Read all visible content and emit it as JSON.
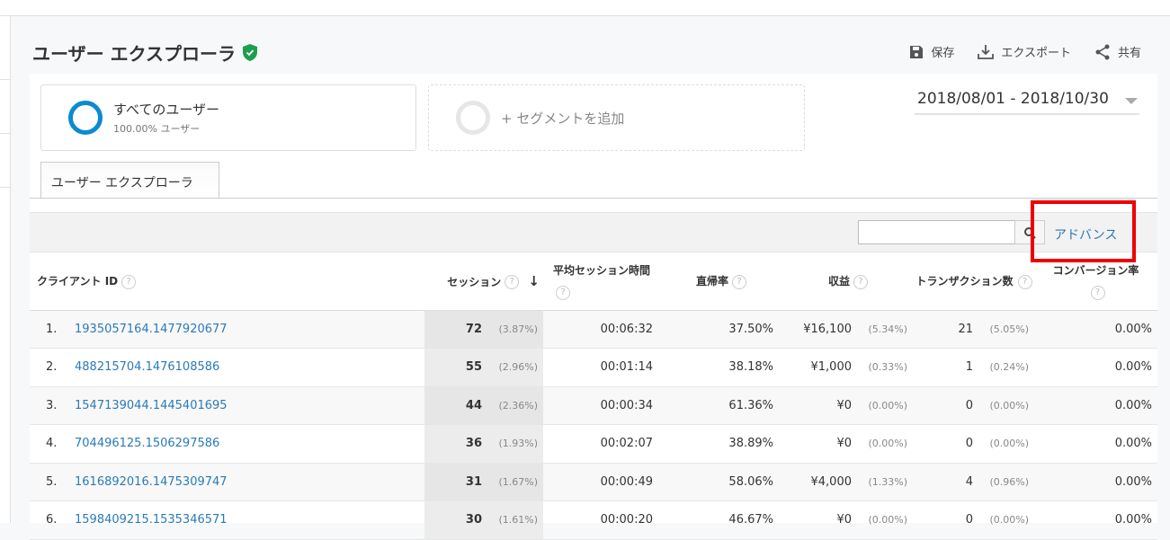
{
  "header": {
    "title": "ユーザー エクスプローラ",
    "verified_color": "#1e9e4f",
    "actions": {
      "save": "保存",
      "export": "エクスポート",
      "share": "共有"
    }
  },
  "segments": [
    {
      "name": "すべてのユーザー",
      "sub": "100.00% ユーザー",
      "color": "#0b8bd0"
    },
    {
      "name": "+ セグメントを追加"
    }
  ],
  "date_range": "2018/08/01 - 2018/10/30",
  "tab": "ユーザー エクスプローラ",
  "toolbar": {
    "search_value": "",
    "advanced": "アドバンス"
  },
  "table": {
    "headers": {
      "client_id": "クライアント ID",
      "sessions": "セッション",
      "avg_duration": "平均セッション時間",
      "bounce": "直帰率",
      "revenue": "収益",
      "transactions": "トランザクション数",
      "conversion": "コンバージョン率",
      "help": "?"
    },
    "rows": [
      {
        "idx": "1.",
        "id": "1935057164.1477920677",
        "sessions": "72",
        "sessions_pct": "(3.87%)",
        "duration": "00:06:32",
        "bounce": "37.50%",
        "revenue": "¥16,100",
        "revenue_pct": "(5.34%)",
        "tx": "21",
        "tx_pct": "(5.05%)",
        "conv": "0.00%"
      },
      {
        "idx": "2.",
        "id": "488215704.1476108586",
        "sessions": "55",
        "sessions_pct": "(2.96%)",
        "duration": "00:01:14",
        "bounce": "38.18%",
        "revenue": "¥1,000",
        "revenue_pct": "(0.33%)",
        "tx": "1",
        "tx_pct": "(0.24%)",
        "conv": "0.00%"
      },
      {
        "idx": "3.",
        "id": "1547139044.1445401695",
        "sessions": "44",
        "sessions_pct": "(2.36%)",
        "duration": "00:00:34",
        "bounce": "61.36%",
        "revenue": "¥0",
        "revenue_pct": "(0.00%)",
        "tx": "0",
        "tx_pct": "(0.00%)",
        "conv": "0.00%"
      },
      {
        "idx": "4.",
        "id": "704496125.1506297586",
        "sessions": "36",
        "sessions_pct": "(1.93%)",
        "duration": "00:02:07",
        "bounce": "38.89%",
        "revenue": "¥0",
        "revenue_pct": "(0.00%)",
        "tx": "0",
        "tx_pct": "(0.00%)",
        "conv": "0.00%"
      },
      {
        "idx": "5.",
        "id": "1616892016.1475309747",
        "sessions": "31",
        "sessions_pct": "(1.67%)",
        "duration": "00:00:49",
        "bounce": "58.06%",
        "revenue": "¥4,000",
        "revenue_pct": "(1.33%)",
        "tx": "4",
        "tx_pct": "(0.96%)",
        "conv": "0.00%"
      },
      {
        "idx": "6.",
        "id": "1598409215.1535346571",
        "sessions": "30",
        "sessions_pct": "(1.61%)",
        "duration": "00:00:20",
        "bounce": "46.67%",
        "revenue": "¥0",
        "revenue_pct": "(0.00%)",
        "tx": "0",
        "tx_pct": "(0.00%)",
        "conv": "0.00%"
      }
    ]
  }
}
